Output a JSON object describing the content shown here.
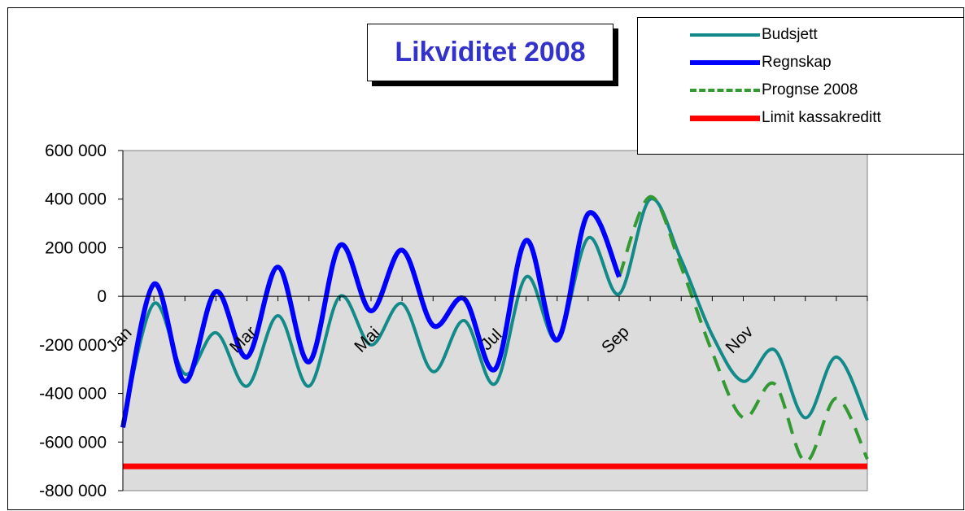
{
  "chart_data": {
    "type": "line",
    "title": "Likviditet 2008",
    "ylim": [
      -800000,
      600000
    ],
    "y_ticks": [
      600000,
      400000,
      200000,
      0,
      -200000,
      -400000,
      -600000,
      -800000
    ],
    "y_tick_labels": [
      "600 000",
      "400 000",
      "200 000",
      "0",
      "-200 000",
      "-400 000",
      "-600 000",
      "-800 000"
    ],
    "x_tick_labels": [
      "Jan",
      "Mar",
      "Mai",
      "Jul",
      "Sep",
      "Nov"
    ],
    "x_tick_label_positions": [
      0,
      4,
      8,
      12,
      16,
      20
    ],
    "n_points": 25,
    "grid": false,
    "legend_position": "top-right",
    "series": [
      {
        "name": "Budsjett",
        "color": "#138a8a",
        "style": "solid",
        "x": [
          0,
          1,
          2,
          3,
          4,
          5,
          6,
          7,
          8,
          9,
          10,
          11,
          12,
          13,
          14,
          15,
          16,
          17,
          18,
          19,
          20,
          21,
          22,
          23,
          24
        ],
        "values": [
          -520000,
          -30000,
          -320000,
          -150000,
          -370000,
          -80000,
          -370000,
          0,
          -200000,
          -30000,
          -310000,
          -100000,
          -360000,
          80000,
          -180000,
          240000,
          10000,
          400000,
          150000,
          -160000,
          -350000,
          -220000,
          -500000,
          -250000,
          -510000
        ]
      },
      {
        "name": "Regnskap",
        "color": "#0000ff",
        "style": "solid-thick",
        "x": [
          0,
          1,
          2,
          3,
          4,
          5,
          6,
          7,
          8,
          9,
          10,
          11,
          12,
          13,
          14,
          15,
          16
        ],
        "values": [
          -540000,
          50000,
          -350000,
          20000,
          -250000,
          120000,
          -270000,
          210000,
          -60000,
          190000,
          -120000,
          -10000,
          -300000,
          230000,
          -180000,
          340000,
          80000
        ]
      },
      {
        "name": "Prognse 2008",
        "color": "#339933",
        "style": "dashed",
        "x": [
          16,
          17,
          18,
          19,
          20,
          21,
          22,
          23,
          24
        ],
        "values": [
          80000,
          410000,
          120000,
          -230000,
          -500000,
          -360000,
          -680000,
          -420000,
          -670000
        ]
      },
      {
        "name": "Limit kassakreditt",
        "color": "#ff0000",
        "style": "solid-thick",
        "x": [
          0,
          24
        ],
        "values": [
          -700000,
          -700000
        ]
      }
    ]
  }
}
